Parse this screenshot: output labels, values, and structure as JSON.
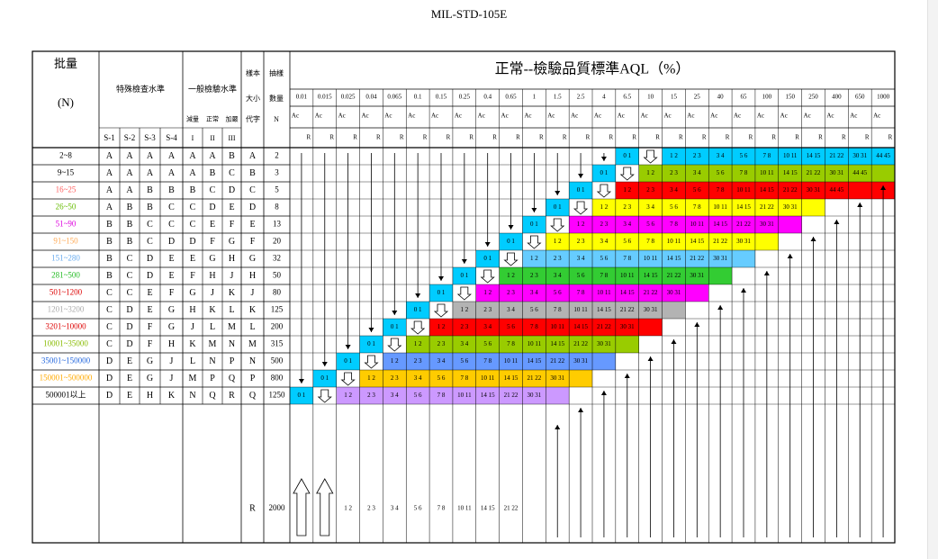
{
  "document": {
    "title": "MIL-STD-105E",
    "aql_header": "正常--檢驗品質標準AQL（%）"
  },
  "header": {
    "lot_label_line1": "批量",
    "lot_label_line2": "(N)",
    "special_label": "特殊檢查水準",
    "special_levels": [
      "S-1",
      "S-2",
      "S-3",
      "S-4"
    ],
    "general_label": "一般檢驗水準",
    "general_sub": [
      "減量",
      "正常",
      "加嚴"
    ],
    "general_levels": [
      "I",
      "II",
      "III"
    ],
    "code_label_line1": "樣本",
    "code_label_line2": "大小",
    "code_label_line3": "代字",
    "sample_label_line1": "抽樣",
    "sample_label_line2": "數量",
    "sample_label_line3": "N",
    "ac_label": "Ac",
    "re_label": "R"
  },
  "aql_values": [
    "0.01",
    "0.015",
    "0.025",
    "0.04",
    "0.065",
    "0.1",
    "0.15",
    "0.25",
    "0.4",
    "0.65",
    "1",
    "1.5",
    "2.5",
    "4",
    "6.5",
    "10",
    "15",
    "25",
    "40",
    "65",
    "100",
    "150",
    "250",
    "400",
    "650",
    "1000"
  ],
  "rows": [
    {
      "lot": "2~8",
      "lot_color": "#000000",
      "special": [
        "A",
        "A",
        "A",
        "A"
      ],
      "general": [
        "A",
        "A",
        "B"
      ],
      "code": "A",
      "n": "2"
    },
    {
      "lot": "9~15",
      "lot_color": "#000000",
      "special": [
        "A",
        "A",
        "A",
        "A"
      ],
      "general": [
        "A",
        "B",
        "C"
      ],
      "code": "B",
      "n": "3"
    },
    {
      "lot": "16~25",
      "lot_color": "#ff6060",
      "special": [
        "A",
        "A",
        "B",
        "B"
      ],
      "general": [
        "B",
        "C",
        "D"
      ],
      "code": "C",
      "n": "5"
    },
    {
      "lot": "26~50",
      "lot_color": "#66bb00",
      "special": [
        "A",
        "B",
        "B",
        "C"
      ],
      "general": [
        "C",
        "D",
        "E"
      ],
      "code": "D",
      "n": "8"
    },
    {
      "lot": "51~90",
      "lot_color": "#dd00dd",
      "special": [
        "B",
        "B",
        "C",
        "C"
      ],
      "general": [
        "C",
        "E",
        "F"
      ],
      "code": "E",
      "n": "13"
    },
    {
      "lot": "91~150",
      "lot_color": "#ffaa55",
      "special": [
        "B",
        "B",
        "C",
        "D"
      ],
      "general": [
        "D",
        "F",
        "G"
      ],
      "code": "F",
      "n": "20"
    },
    {
      "lot": "151~280",
      "lot_color": "#66aaee",
      "special": [
        "B",
        "C",
        "D",
        "E"
      ],
      "general": [
        "E",
        "G",
        "H"
      ],
      "code": "G",
      "n": "32"
    },
    {
      "lot": "281~500",
      "lot_color": "#22bb22",
      "special": [
        "B",
        "C",
        "D",
        "E"
      ],
      "general": [
        "F",
        "H",
        "J"
      ],
      "code": "H",
      "n": "50"
    },
    {
      "lot": "501~1200",
      "lot_color": "#dd0000",
      "special": [
        "C",
        "C",
        "E",
        "F"
      ],
      "general": [
        "G",
        "J",
        "K"
      ],
      "code": "J",
      "n": "80"
    },
    {
      "lot": "1201~3200",
      "lot_color": "#aaaaaa",
      "special": [
        "C",
        "D",
        "E",
        "G"
      ],
      "general": [
        "H",
        "K",
        "L"
      ],
      "code": "K",
      "n": "125"
    },
    {
      "lot": "3201~10000",
      "lot_color": "#dd0000",
      "special": [
        "C",
        "D",
        "F",
        "G"
      ],
      "general": [
        "J",
        "L",
        "M"
      ],
      "code": "L",
      "n": "200"
    },
    {
      "lot": "10001~35000",
      "lot_color": "#88bb00",
      "special": [
        "C",
        "D",
        "F",
        "H"
      ],
      "general": [
        "K",
        "M",
        "N"
      ],
      "code": "M",
      "n": "315"
    },
    {
      "lot": "35001~150000",
      "lot_color": "#2266dd",
      "special": [
        "D",
        "E",
        "G",
        "J"
      ],
      "general": [
        "L",
        "N",
        "P"
      ],
      "code": "N",
      "n": "500"
    },
    {
      "lot": "150001~500000",
      "lot_color": "#ffaa00",
      "special": [
        "D",
        "E",
        "G",
        "J"
      ],
      "general": [
        "M",
        "P",
        "Q"
      ],
      "code": "P",
      "n": "800"
    },
    {
      "lot": "500001以上",
      "lot_color": "#000000",
      "special": [
        "D",
        "E",
        "H",
        "K"
      ],
      "general": [
        "N",
        "Q",
        "R"
      ],
      "code": "Q",
      "n": "1250"
    },
    {
      "lot": "",
      "lot_color": "#000000",
      "special": [
        "",
        "",
        "",
        ""
      ],
      "general": [
        "",
        "",
        ""
      ],
      "code": "R",
      "n": "2000"
    }
  ],
  "ac_re_sequence": [
    "0 1",
    "1 2",
    "2 3",
    "3 4",
    "5 6",
    "7 8",
    "10 11",
    "14 15",
    "21 22",
    "30 31",
    "44 45"
  ],
  "last_row_values": [
    "1 2",
    "2 3",
    "3 4",
    "5 6",
    "7 8",
    "10 11",
    "14 15",
    "21 22"
  ],
  "band_colors": [
    "#00ccff",
    "#99cc00",
    "#ff0000",
    "#ffff00",
    "#ff00ff",
    "#ffff00",
    "#66ccff",
    "#33cc33",
    "#ff00ff",
    "#b3b3b3",
    "#ff0000",
    "#99cc00",
    "#6699ff",
    "#ffcc00",
    "#cc99ff"
  ]
}
